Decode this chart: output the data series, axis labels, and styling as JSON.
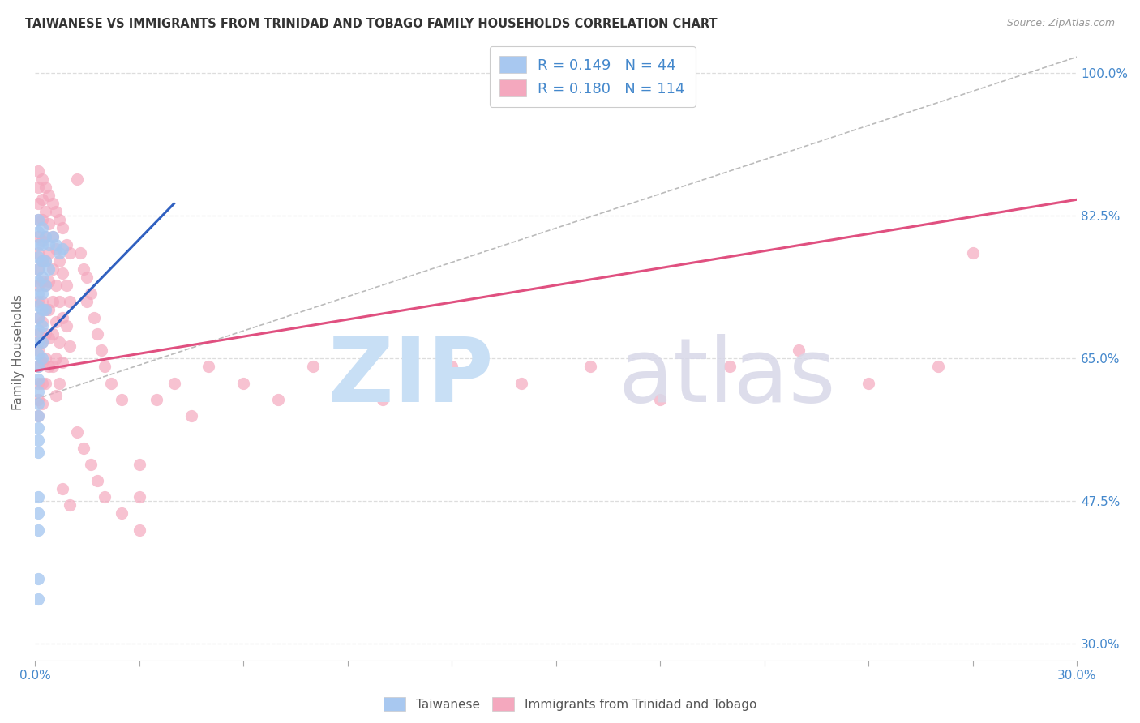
{
  "title": "TAIWANESE VS IMMIGRANTS FROM TRINIDAD AND TOBAGO FAMILY HOUSEHOLDS CORRELATION CHART",
  "source": "Source: ZipAtlas.com",
  "ylabel": "Family Households",
  "ytick_labels": [
    "100.0%",
    "82.5%",
    "65.0%",
    "47.5%",
    "30.0%"
  ],
  "ytick_values": [
    1.0,
    0.825,
    0.65,
    0.475,
    0.3
  ],
  "xlim": [
    0.0,
    0.3
  ],
  "ylim": [
    0.28,
    1.035
  ],
  "legend_line1": "R = 0.149   N = 44",
  "legend_line2": "R = 0.180   N = 114",
  "taiwanese_color": "#a8c8f0",
  "trinidad_color": "#f4a8be",
  "taiwanese_line_color": "#3060c0",
  "trinidad_line_color": "#e05080",
  "diag_line_color": "#bbbbbb",
  "taiwan_trend_x": [
    0.0,
    0.04
  ],
  "taiwan_trend_y": [
    0.665,
    0.84
  ],
  "trinidad_trend_x": [
    0.0,
    0.3
  ],
  "trinidad_trend_y": [
    0.635,
    0.845
  ],
  "diag_trend_x": [
    0.0,
    0.3
  ],
  "diag_trend_y": [
    0.6,
    1.02
  ],
  "grid_color": "#dddddd",
  "background_color": "#ffffff",
  "taiwanese_scatter": [
    [
      0.001,
      0.82
    ],
    [
      0.001,
      0.805
    ],
    [
      0.001,
      0.79
    ],
    [
      0.001,
      0.775
    ],
    [
      0.001,
      0.76
    ],
    [
      0.001,
      0.745
    ],
    [
      0.001,
      0.73
    ],
    [
      0.001,
      0.715
    ],
    [
      0.001,
      0.7
    ],
    [
      0.001,
      0.685
    ],
    [
      0.001,
      0.67
    ],
    [
      0.001,
      0.655
    ],
    [
      0.001,
      0.64
    ],
    [
      0.001,
      0.625
    ],
    [
      0.001,
      0.61
    ],
    [
      0.001,
      0.595
    ],
    [
      0.001,
      0.58
    ],
    [
      0.001,
      0.565
    ],
    [
      0.001,
      0.55
    ],
    [
      0.001,
      0.535
    ],
    [
      0.002,
      0.81
    ],
    [
      0.002,
      0.79
    ],
    [
      0.002,
      0.77
    ],
    [
      0.002,
      0.75
    ],
    [
      0.002,
      0.73
    ],
    [
      0.002,
      0.71
    ],
    [
      0.002,
      0.69
    ],
    [
      0.002,
      0.67
    ],
    [
      0.002,
      0.65
    ],
    [
      0.003,
      0.8
    ],
    [
      0.003,
      0.77
    ],
    [
      0.003,
      0.74
    ],
    [
      0.003,
      0.71
    ],
    [
      0.004,
      0.79
    ],
    [
      0.004,
      0.76
    ],
    [
      0.001,
      0.48
    ],
    [
      0.001,
      0.46
    ],
    [
      0.001,
      0.44
    ],
    [
      0.001,
      0.38
    ],
    [
      0.001,
      0.355
    ],
    [
      0.005,
      0.8
    ],
    [
      0.006,
      0.79
    ],
    [
      0.007,
      0.78
    ],
    [
      0.008,
      0.785
    ]
  ],
  "trinidad_scatter": [
    [
      0.001,
      0.88
    ],
    [
      0.001,
      0.86
    ],
    [
      0.001,
      0.84
    ],
    [
      0.001,
      0.82
    ],
    [
      0.001,
      0.8
    ],
    [
      0.001,
      0.78
    ],
    [
      0.001,
      0.76
    ],
    [
      0.001,
      0.74
    ],
    [
      0.001,
      0.72
    ],
    [
      0.001,
      0.7
    ],
    [
      0.001,
      0.68
    ],
    [
      0.001,
      0.66
    ],
    [
      0.001,
      0.64
    ],
    [
      0.001,
      0.62
    ],
    [
      0.001,
      0.6
    ],
    [
      0.001,
      0.58
    ],
    [
      0.002,
      0.87
    ],
    [
      0.002,
      0.845
    ],
    [
      0.002,
      0.82
    ],
    [
      0.002,
      0.795
    ],
    [
      0.002,
      0.77
    ],
    [
      0.002,
      0.745
    ],
    [
      0.002,
      0.72
    ],
    [
      0.002,
      0.695
    ],
    [
      0.002,
      0.67
    ],
    [
      0.002,
      0.645
    ],
    [
      0.002,
      0.62
    ],
    [
      0.002,
      0.595
    ],
    [
      0.003,
      0.86
    ],
    [
      0.003,
      0.83
    ],
    [
      0.003,
      0.8
    ],
    [
      0.003,
      0.77
    ],
    [
      0.003,
      0.74
    ],
    [
      0.003,
      0.71
    ],
    [
      0.003,
      0.68
    ],
    [
      0.003,
      0.65
    ],
    [
      0.003,
      0.62
    ],
    [
      0.004,
      0.85
    ],
    [
      0.004,
      0.815
    ],
    [
      0.004,
      0.78
    ],
    [
      0.004,
      0.745
    ],
    [
      0.004,
      0.71
    ],
    [
      0.004,
      0.675
    ],
    [
      0.004,
      0.64
    ],
    [
      0.005,
      0.84
    ],
    [
      0.005,
      0.8
    ],
    [
      0.005,
      0.76
    ],
    [
      0.005,
      0.72
    ],
    [
      0.005,
      0.68
    ],
    [
      0.005,
      0.64
    ],
    [
      0.006,
      0.83
    ],
    [
      0.006,
      0.785
    ],
    [
      0.006,
      0.74
    ],
    [
      0.006,
      0.695
    ],
    [
      0.006,
      0.65
    ],
    [
      0.006,
      0.605
    ],
    [
      0.007,
      0.82
    ],
    [
      0.007,
      0.77
    ],
    [
      0.007,
      0.72
    ],
    [
      0.007,
      0.67
    ],
    [
      0.007,
      0.62
    ],
    [
      0.008,
      0.81
    ],
    [
      0.008,
      0.755
    ],
    [
      0.008,
      0.7
    ],
    [
      0.008,
      0.645
    ],
    [
      0.009,
      0.79
    ],
    [
      0.009,
      0.74
    ],
    [
      0.009,
      0.69
    ],
    [
      0.01,
      0.78
    ],
    [
      0.01,
      0.72
    ],
    [
      0.01,
      0.665
    ],
    [
      0.012,
      0.87
    ],
    [
      0.013,
      0.78
    ],
    [
      0.014,
      0.76
    ],
    [
      0.015,
      0.75
    ],
    [
      0.015,
      0.72
    ],
    [
      0.016,
      0.73
    ],
    [
      0.017,
      0.7
    ],
    [
      0.018,
      0.68
    ],
    [
      0.019,
      0.66
    ],
    [
      0.02,
      0.64
    ],
    [
      0.022,
      0.62
    ],
    [
      0.025,
      0.6
    ],
    [
      0.012,
      0.56
    ],
    [
      0.014,
      0.54
    ],
    [
      0.016,
      0.52
    ],
    [
      0.018,
      0.5
    ],
    [
      0.02,
      0.48
    ],
    [
      0.025,
      0.46
    ],
    [
      0.03,
      0.44
    ],
    [
      0.035,
      0.6
    ],
    [
      0.04,
      0.62
    ],
    [
      0.045,
      0.58
    ],
    [
      0.05,
      0.64
    ],
    [
      0.06,
      0.62
    ],
    [
      0.07,
      0.6
    ],
    [
      0.08,
      0.64
    ],
    [
      0.09,
      0.62
    ],
    [
      0.1,
      0.6
    ],
    [
      0.12,
      0.64
    ],
    [
      0.14,
      0.62
    ],
    [
      0.16,
      0.64
    ],
    [
      0.18,
      0.6
    ],
    [
      0.2,
      0.64
    ],
    [
      0.22,
      0.66
    ],
    [
      0.24,
      0.62
    ],
    [
      0.26,
      0.64
    ],
    [
      0.27,
      0.78
    ],
    [
      0.008,
      0.49
    ],
    [
      0.01,
      0.47
    ],
    [
      0.03,
      0.48
    ],
    [
      0.03,
      0.52
    ]
  ]
}
